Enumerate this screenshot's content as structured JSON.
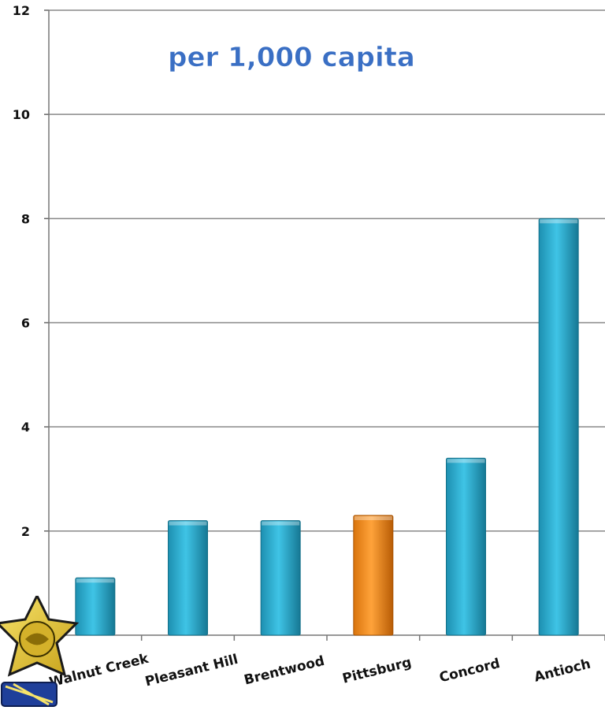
{
  "chart_data": {
    "type": "bar",
    "title": "per 1,000 capita",
    "categories": [
      "Walnut Creek",
      "Pleasant Hill",
      "Brentwood",
      "Pittsburg",
      "Concord",
      "Antioch"
    ],
    "series": [
      {
        "values": [
          1.1,
          2.2,
          2.2,
          2.3,
          3.4,
          8.0
        ]
      }
    ],
    "highlight_category": "Pittsburg",
    "ylim": [
      0,
      12
    ],
    "yticks": [
      2,
      4,
      6,
      8,
      10,
      12
    ],
    "grid": true,
    "colors": {
      "bar": "#2ab3d6",
      "highlight": "#f28c1a",
      "title": "#3a6fc4",
      "grid": "#888888"
    }
  }
}
